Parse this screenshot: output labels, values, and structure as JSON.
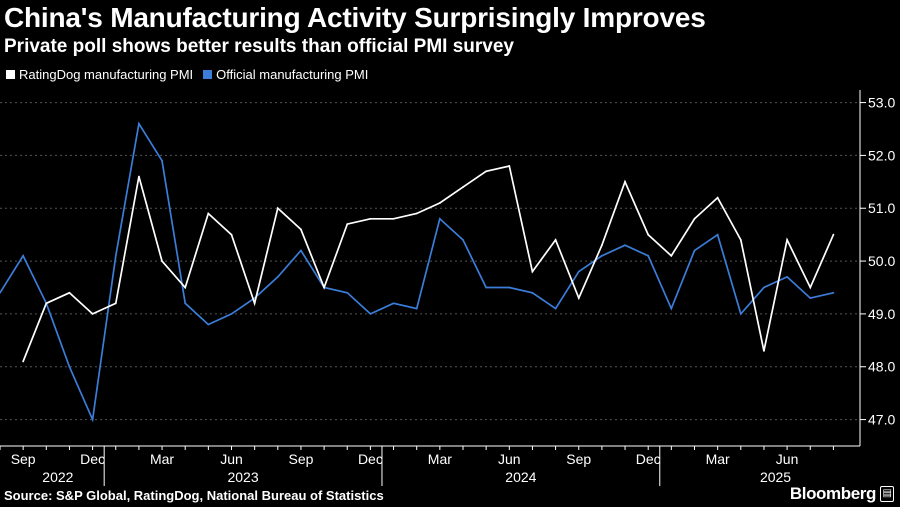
{
  "title": "China's Manufacturing Activity Surprisingly Improves",
  "subtitle": "Private poll shows better results than official PMI survey",
  "source": "Source: S&P Global, RatingDog, National Bureau of Statistics",
  "brand": "Bloomberg",
  "colors": {
    "background": "#000000",
    "ratingdog": "#ffffff",
    "official": "#3b7dd8",
    "grid": "#555555",
    "axis": "#ffffff"
  },
  "chart_data": {
    "type": "line",
    "title": "China's Manufacturing Activity Surprisingly Improves",
    "legend_position": "top-left",
    "y_axis_position": "right",
    "ylim": [
      46.5,
      53.2
    ],
    "yticks": [
      47.0,
      48.0,
      49.0,
      50.0,
      51.0,
      52.0,
      53.0
    ],
    "ytick_labels": [
      "47.0",
      "48.0",
      "49.0",
      "50.0",
      "51.0",
      "52.0",
      "53.0"
    ],
    "x_start": "2022-08",
    "x_end": "2025-08",
    "month_tick_labels": [
      {
        "index": 1,
        "label": "Sep"
      },
      {
        "index": 4,
        "label": "Dec"
      },
      {
        "index": 7,
        "label": "Mar"
      },
      {
        "index": 10,
        "label": "Jun"
      },
      {
        "index": 13,
        "label": "Sep"
      },
      {
        "index": 16,
        "label": "Dec"
      },
      {
        "index": 19,
        "label": "Mar"
      },
      {
        "index": 22,
        "label": "Jun"
      },
      {
        "index": 25,
        "label": "Sep"
      },
      {
        "index": 28,
        "label": "Dec"
      },
      {
        "index": 31,
        "label": "Mar"
      },
      {
        "index": 34,
        "label": "Jun"
      }
    ],
    "year_labels": [
      {
        "index": 2.5,
        "label": "2022"
      },
      {
        "index": 10.5,
        "label": "2023"
      },
      {
        "index": 22.5,
        "label": "2024"
      },
      {
        "index": 33.5,
        "label": "2025"
      }
    ],
    "year_separators": [
      5,
      17,
      29
    ],
    "series": [
      {
        "name": "RatingDog manufacturing PMI",
        "color": "#ffffff",
        "start_index": 1,
        "values": [
          48.1,
          49.2,
          49.4,
          49.0,
          49.2,
          51.6,
          50.0,
          49.5,
          50.9,
          50.5,
          49.2,
          51.0,
          50.6,
          49.5,
          50.7,
          50.8,
          50.8,
          50.9,
          51.1,
          51.4,
          51.7,
          51.8,
          49.8,
          50.4,
          49.3,
          50.3,
          51.5,
          50.5,
          50.1,
          50.8,
          51.2,
          50.4,
          48.3,
          50.4,
          49.5,
          50.5
        ]
      },
      {
        "name": "Official manufacturing PMI",
        "color": "#3b7dd8",
        "start_index": 0,
        "values": [
          49.4,
          50.1,
          49.2,
          48.0,
          47.0,
          50.1,
          52.6,
          51.9,
          49.2,
          48.8,
          49.0,
          49.3,
          49.7,
          50.2,
          49.5,
          49.4,
          49.0,
          49.2,
          49.1,
          50.8,
          50.4,
          49.5,
          49.5,
          49.4,
          49.1,
          49.8,
          50.1,
          50.3,
          50.1,
          49.1,
          50.2,
          50.5,
          49.0,
          49.5,
          49.7,
          49.3,
          49.4
        ]
      }
    ]
  }
}
